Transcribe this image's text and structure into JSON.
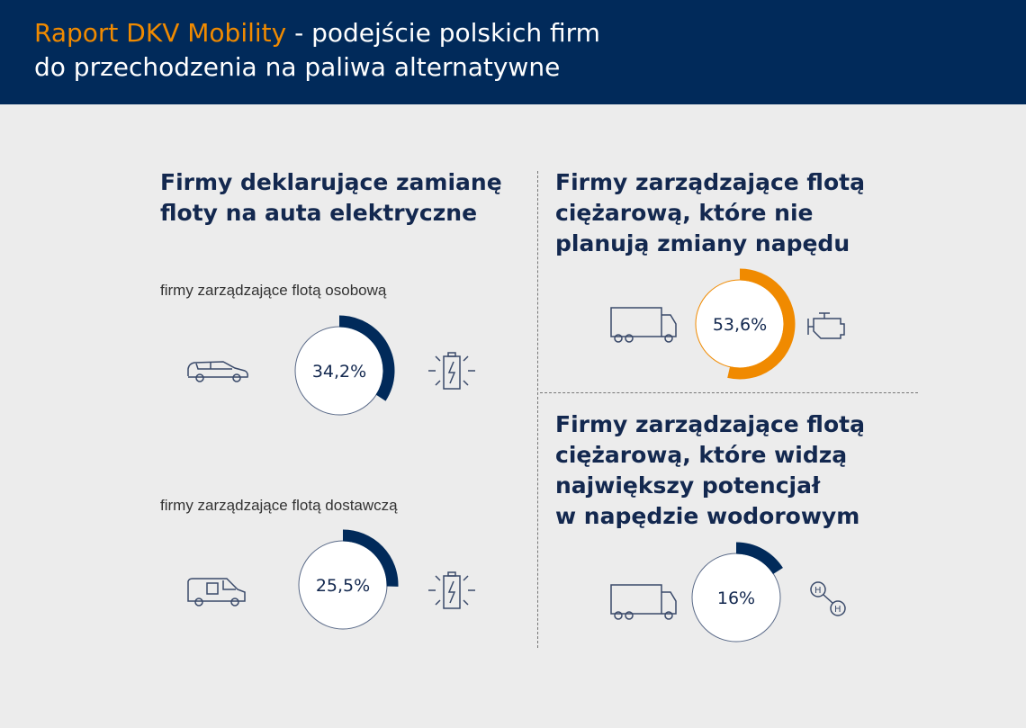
{
  "header": {
    "title_highlight": "Raport DKV Mobility",
    "title_rest": " - podejście polskich firm",
    "title_line2": "do przechodzenia na paliwa alternatywne"
  },
  "left": {
    "heading1": "Firmy deklarujące zamianę",
    "heading2": "floty na auta elektryczne",
    "sub1": "firmy zarządzające flotą osobową",
    "sub2": "firmy zarządzające flotą dostawczą"
  },
  "right": {
    "top_heading": [
      "Firmy zarządzające flotą",
      "ciężarową, które nie",
      "planują zmiany napędu"
    ],
    "bottom_heading": [
      "Firmy zarządzające flotą",
      "ciężarową, które widzą",
      "największy potencjał",
      "w napędzie wodorowym"
    ]
  },
  "colors": {
    "navy": "#012a5a",
    "orange": "#f08a00",
    "background": "#ececec"
  },
  "chart_data": [
    {
      "type": "pie",
      "label": "34,2%",
      "value": 34.2,
      "color": "#012a5a",
      "icons": [
        "car-icon",
        "battery-icon"
      ]
    },
    {
      "type": "pie",
      "label": "25,5%",
      "value": 25.5,
      "color": "#012a5a",
      "icons": [
        "van-icon",
        "battery-icon"
      ]
    },
    {
      "type": "pie",
      "label": "53,6%",
      "value": 53.6,
      "color": "#f08a00",
      "icons": [
        "truck-icon",
        "engine-icon"
      ]
    },
    {
      "type": "pie",
      "label": "16%",
      "value": 16,
      "color": "#012a5a",
      "icons": [
        "truck-icon",
        "hydrogen-icon"
      ]
    }
  ]
}
